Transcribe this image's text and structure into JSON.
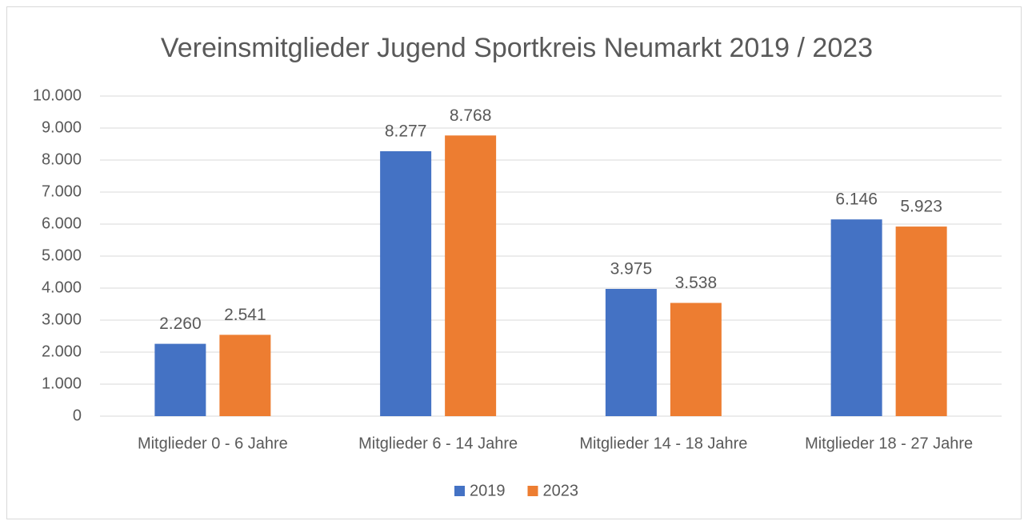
{
  "chart_data": {
    "type": "bar",
    "title": "Vereinsmitglieder Jugend Sportkreis Neumarkt 2019 / 2023",
    "categories": [
      "Mitglieder 0 - 6 Jahre",
      "Mitglieder 6 - 14 Jahre",
      "Mitglieder 14 - 18 Jahre",
      "Mitglieder 18 - 27 Jahre"
    ],
    "series": [
      {
        "name": "2019",
        "color": "#4472c4",
        "values": [
          2260,
          8277,
          3975,
          6146
        ],
        "value_labels": [
          "2.260",
          "8.277",
          "3.975",
          "6.146"
        ]
      },
      {
        "name": "2023",
        "color": "#ed7d31",
        "values": [
          2541,
          8768,
          3538,
          5923
        ],
        "value_labels": [
          "2.541",
          "8.768",
          "3.538",
          "5.923"
        ]
      }
    ],
    "ylim": [
      0,
      10000
    ],
    "yticks": [
      0,
      {
        "value": 1000,
        "label": "1.000"
      },
      {
        "value": 2000,
        "label": "2.000"
      },
      {
        "value": 3000,
        "label": "3.000"
      },
      {
        "value": 4000,
        "label": "4.000"
      },
      {
        "value": 5000,
        "label": "5.000"
      },
      {
        "value": 6000,
        "label": "6.000"
      },
      {
        "value": 7000,
        "label": "7.000"
      },
      {
        "value": 8000,
        "label": "8.000"
      },
      {
        "value": 9000,
        "label": "9.000"
      },
      {
        "value": 10000,
        "label": "10.000"
      }
    ],
    "grid": true,
    "legend": "bottom"
  }
}
